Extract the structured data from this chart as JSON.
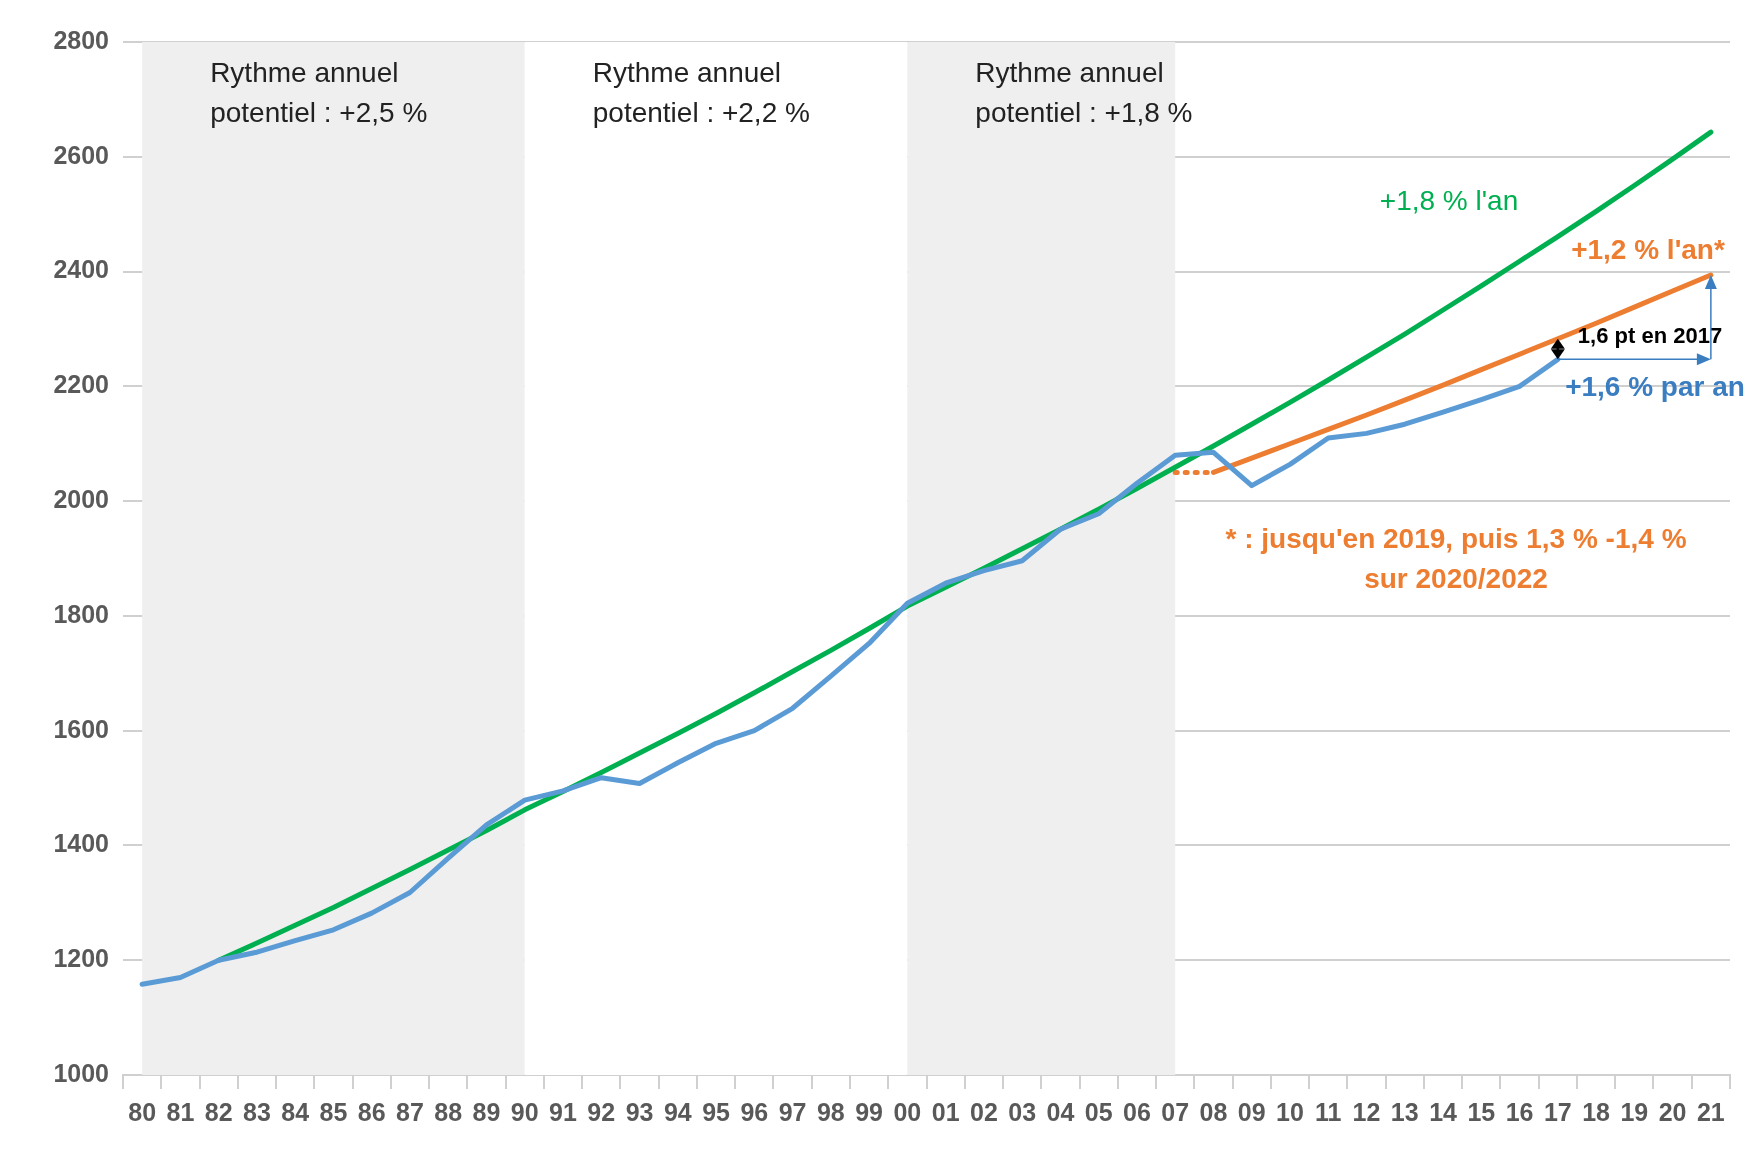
{
  "chart_data": {
    "type": "line",
    "categories": [
      "80",
      "81",
      "82",
      "83",
      "84",
      "85",
      "86",
      "87",
      "88",
      "89",
      "90",
      "91",
      "92",
      "93",
      "94",
      "95",
      "96",
      "97",
      "98",
      "99",
      "00",
      "01",
      "02",
      "03",
      "04",
      "05",
      "06",
      "07",
      "08",
      "09",
      "10",
      "11",
      "12",
      "13",
      "14",
      "15",
      "16",
      "17",
      "18",
      "19",
      "20",
      "21"
    ],
    "series": [
      {
        "color": "#5b9bd5",
        "values": [
          1158,
          1170,
          1200,
          1214,
          1234,
          1253,
          1282,
          1318,
          1378,
          1436,
          1479,
          1495,
          1518,
          1508,
          1544,
          1578,
          1600,
          1639,
          1695,
          1752,
          1822,
          1857,
          1879,
          1896,
          1951,
          1978,
          2031,
          2080,
          2085,
          2027,
          2064,
          2110,
          2118,
          2134,
          2155,
          2177,
          2200,
          2247,
          null,
          null,
          null,
          null
        ]
      },
      {
        "color": "#00b050",
        "values": [
          null,
          null,
          1200,
          1230,
          1261,
          1292,
          1325,
          1358,
          1392,
          1426,
          1462,
          1494,
          1527,
          1561,
          1595,
          1630,
          1666,
          1703,
          1740,
          1778,
          1817,
          1850,
          1883,
          1917,
          1951,
          1986,
          2022,
          2059,
          2096,
          2134,
          2172,
          2211,
          2251,
          2291,
          2333,
          2375,
          2418,
          2461,
          2505,
          2550,
          2596,
          2643
        ]
      },
      {
        "color": "#ed7d31",
        "values": [
          null,
          null,
          null,
          null,
          null,
          null,
          null,
          null,
          null,
          null,
          null,
          null,
          null,
          null,
          null,
          null,
          null,
          null,
          null,
          null,
          null,
          null,
          null,
          null,
          null,
          null,
          null,
          null,
          2050,
          2075,
          2100,
          2125,
          2150,
          2176,
          2202,
          2229,
          2256,
          2283,
          2310,
          2338,
          2366,
          2394
        ]
      },
      {
        "color": "#ed7d31",
        "line_style": "dotted",
        "values": [
          null,
          null,
          null,
          null,
          null,
          null,
          null,
          null,
          null,
          null,
          null,
          null,
          null,
          null,
          null,
          null,
          null,
          null,
          null,
          null,
          null,
          null,
          null,
          null,
          null,
          null,
          null,
          2050,
          2050,
          null,
          null,
          null,
          null,
          null,
          null,
          null,
          null,
          null,
          null,
          null,
          null,
          null
        ]
      }
    ],
    "ylim": [
      1000,
      2800
    ],
    "yticks": [
      1000,
      1200,
      1400,
      1600,
      1800,
      2000,
      2200,
      2400,
      2600,
      2800
    ],
    "grid": "y",
    "legend": false,
    "line_style": "solid",
    "marker": "none",
    "bands": [
      {
        "axis": "x",
        "from": "80",
        "to": "90",
        "label": "Rythme annuel\npotentiel : +2,5 %",
        "color": "#efefef"
      },
      {
        "axis": "x",
        "from": "90",
        "to": "00",
        "label": "Rythme annuel\npotentiel : +2,2 %",
        "color": "#ffffff"
      },
      {
        "axis": "x",
        "from": "00",
        "to": "07",
        "label": "Rythme annuel\npotentiel : +1,8 %",
        "color": "#efefef"
      }
    ],
    "annotations": [
      "+1,8 % l'an",
      "+1,2 % l'an*",
      {
        "text": "1,6 pt en 2017",
        "x": "17",
        "y": 2283
      },
      "+1,6 % par an",
      "* : jusqu'en 2019, puis 1,3 % -1,4 % sur 2020/2022"
    ]
  }
}
